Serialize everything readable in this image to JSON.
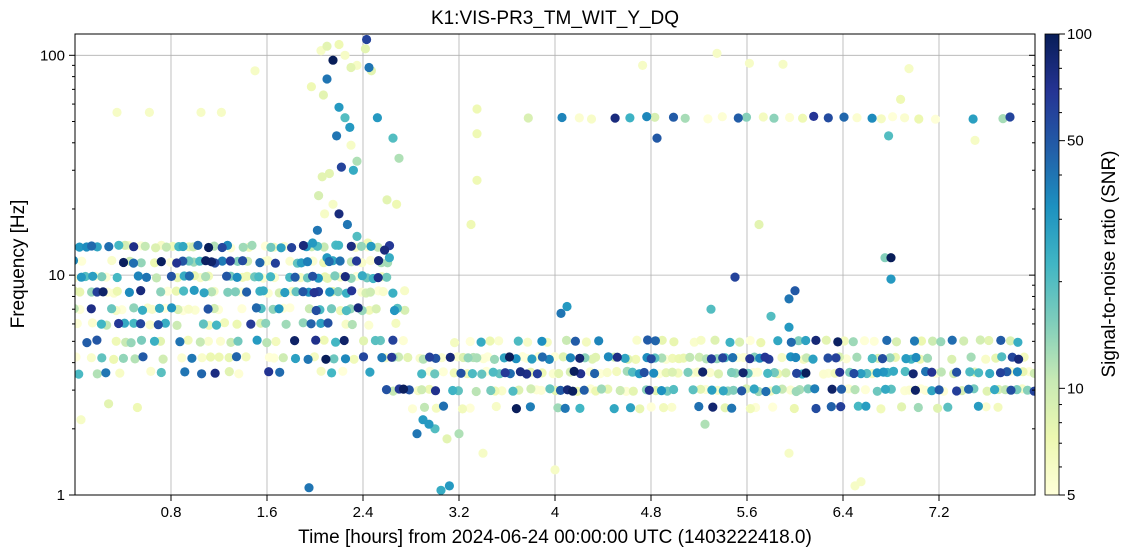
{
  "chart_data": {
    "type": "scatter",
    "title": "K1:VIS-PR3_TM_WIT_Y_DQ",
    "xlabel": "Time [hours] from 2024-06-24 00:00:00 UTC (1403222418.0)",
    "ylabel": "Frequency [Hz]",
    "xlim": [
      0,
      8.0
    ],
    "ylim": [
      1,
      125
    ],
    "yscale": "log",
    "x_ticks": [
      0.8,
      1.6,
      2.4,
      3.2,
      4.0,
      4.8,
      5.6,
      6.4,
      7.2
    ],
    "x_tick_labels": [
      "0.8",
      "1.6",
      "2.4",
      "3.2",
      "4",
      "4.8",
      "5.6",
      "6.4",
      "7.2"
    ],
    "y_ticks": [
      1,
      10,
      100
    ],
    "y_tick_labels": [
      "1",
      "10",
      "100"
    ],
    "grid": true,
    "colorbar": {
      "label": "Signal-to-noise ratio (SNR)",
      "scale": "log",
      "range": [
        5,
        100
      ],
      "ticks": [
        5,
        10,
        50,
        100
      ],
      "tick_labels": [
        "5",
        "10",
        "50",
        "100"
      ],
      "colors": [
        "#ffffd9",
        "#edf8b1",
        "#c7e9b4",
        "#7fcdbb",
        "#41b6c4",
        "#1d91c0",
        "#225ea8",
        "#253494",
        "#081d58"
      ]
    },
    "points": [
      [
        0.35,
        55,
        6
      ],
      [
        0.62,
        55,
        6
      ],
      [
        1.05,
        55,
        6
      ],
      [
        1.22,
        55,
        6
      ],
      [
        0.28,
        2.6,
        8
      ],
      [
        0.05,
        2.2,
        6
      ],
      [
        0.52,
        2.5,
        7
      ],
      [
        1.5,
        85,
        6
      ],
      [
        1.95,
        1.08,
        40
      ],
      [
        2.05,
        105,
        6
      ],
      [
        2.1,
        110,
        8
      ],
      [
        2.15,
        95,
        100
      ],
      [
        2.2,
        112,
        7
      ],
      [
        2.25,
        100,
        6
      ],
      [
        2.3,
        88,
        8
      ],
      [
        2.35,
        90,
        6
      ],
      [
        2.43,
        118,
        60
      ],
      [
        2.45,
        88,
        40
      ],
      [
        2.47,
        85,
        8
      ],
      [
        2.42,
        107,
        8
      ],
      [
        2.1,
        78,
        40
      ],
      [
        1.97,
        72,
        7
      ],
      [
        2.07,
        66,
        8
      ],
      [
        2.2,
        58,
        30
      ],
      [
        2.25,
        52,
        20
      ],
      [
        2.29,
        47,
        30
      ],
      [
        2.18,
        43,
        40
      ],
      [
        2.3,
        39,
        6
      ],
      [
        2.35,
        33,
        12
      ],
      [
        2.22,
        31,
        60
      ],
      [
        2.32,
        30,
        25
      ],
      [
        2.12,
        29,
        8
      ],
      [
        2.06,
        28,
        8
      ],
      [
        2.03,
        23,
        9
      ],
      [
        2.15,
        21,
        6
      ],
      [
        2.08,
        19,
        6
      ],
      [
        2.2,
        19,
        80
      ],
      [
        2.27,
        17,
        40
      ],
      [
        2.35,
        15,
        20
      ],
      [
        2.44,
        14,
        7
      ],
      [
        2.52,
        52,
        30
      ],
      [
        2.65,
        42,
        20
      ],
      [
        2.7,
        34,
        12
      ],
      [
        2.6,
        22,
        8
      ],
      [
        2.68,
        21,
        7
      ],
      [
        2.58,
        13,
        80
      ],
      [
        2.62,
        12,
        25
      ],
      [
        2.02,
        16,
        40
      ],
      [
        1.98,
        14,
        30
      ],
      [
        2.1,
        12,
        30
      ],
      [
        3.05,
        1.05,
        25
      ],
      [
        3.12,
        1.1,
        30
      ],
      [
        3.35,
        57,
        7
      ],
      [
        3.35,
        44,
        7
      ],
      [
        3.35,
        27,
        7
      ],
      [
        3.3,
        17,
        7
      ],
      [
        3.4,
        1.55,
        6
      ],
      [
        3.1,
        1.8,
        8
      ],
      [
        3.2,
        1.9,
        12
      ],
      [
        3.0,
        2.0,
        20
      ],
      [
        2.95,
        2.1,
        30
      ],
      [
        2.85,
        1.9,
        40
      ],
      [
        2.9,
        2.2,
        30
      ],
      [
        4.0,
        1.3,
        6
      ],
      [
        4.85,
        42,
        50
      ],
      [
        4.73,
        90,
        6
      ],
      [
        5.35,
        102,
        6
      ],
      [
        5.5,
        9.8,
        60
      ],
      [
        5.62,
        92,
        6
      ],
      [
        5.7,
        17,
        8
      ],
      [
        5.9,
        91,
        6
      ],
      [
        5.95,
        1.55,
        6
      ],
      [
        6.0,
        8.5,
        50
      ],
      [
        5.95,
        7.8,
        40
      ],
      [
        6.8,
        12,
        100
      ],
      [
        6.8,
        9.6,
        30
      ],
      [
        6.75,
        12,
        15
      ],
      [
        6.95,
        87,
        6
      ],
      [
        6.88,
        63,
        7
      ],
      [
        6.78,
        43,
        20
      ],
      [
        7.5,
        41,
        6
      ],
      [
        6.5,
        1.1,
        6
      ],
      [
        6.55,
        1.15,
        6
      ],
      [
        4.1,
        7.2,
        30
      ],
      [
        4.05,
        6.7,
        40
      ],
      [
        5.8,
        6.5,
        20
      ],
      [
        5.3,
        7.0,
        20
      ],
      [
        5.25,
        2.1,
        12
      ],
      [
        5.95,
        5.8,
        30
      ]
    ],
    "bands": [
      {
        "y": 13.5,
        "x0": 0.0,
        "x1": 2.65,
        "step": 0.045
      },
      {
        "y": 11.5,
        "x0": 0.0,
        "x1": 2.65,
        "step": 0.045
      },
      {
        "y": 9.8,
        "x0": 0.0,
        "x1": 2.65,
        "step": 0.045
      },
      {
        "y": 8.4,
        "x0": 0.0,
        "x1": 2.75,
        "step": 0.045
      },
      {
        "y": 7.0,
        "x0": 0.0,
        "x1": 2.75,
        "step": 0.05
      },
      {
        "y": 6.0,
        "x0": 0.0,
        "x1": 2.7,
        "step": 0.07
      },
      {
        "y": 5.0,
        "x0": 0.0,
        "x1": 2.8,
        "step": 0.08
      },
      {
        "y": 4.2,
        "x0": 0.0,
        "x1": 2.8,
        "step": 0.08
      },
      {
        "y": 3.6,
        "x0": 0.05,
        "x1": 2.5,
        "step": 0.11
      },
      {
        "y": 5.0,
        "x0": 3.15,
        "x1": 8.0,
        "step": 0.08
      },
      {
        "y": 4.2,
        "x0": 2.55,
        "x1": 8.0,
        "step": 0.045
      },
      {
        "y": 3.6,
        "x0": 2.9,
        "x1": 8.0,
        "step": 0.045
      },
      {
        "y": 3.0,
        "x0": 2.6,
        "x1": 8.0,
        "step": 0.05
      },
      {
        "y": 2.5,
        "x0": 2.8,
        "x1": 8.0,
        "step": 0.1
      },
      {
        "y": 52,
        "x0": 3.75,
        "x1": 8.0,
        "step": 0.11
      }
    ]
  }
}
